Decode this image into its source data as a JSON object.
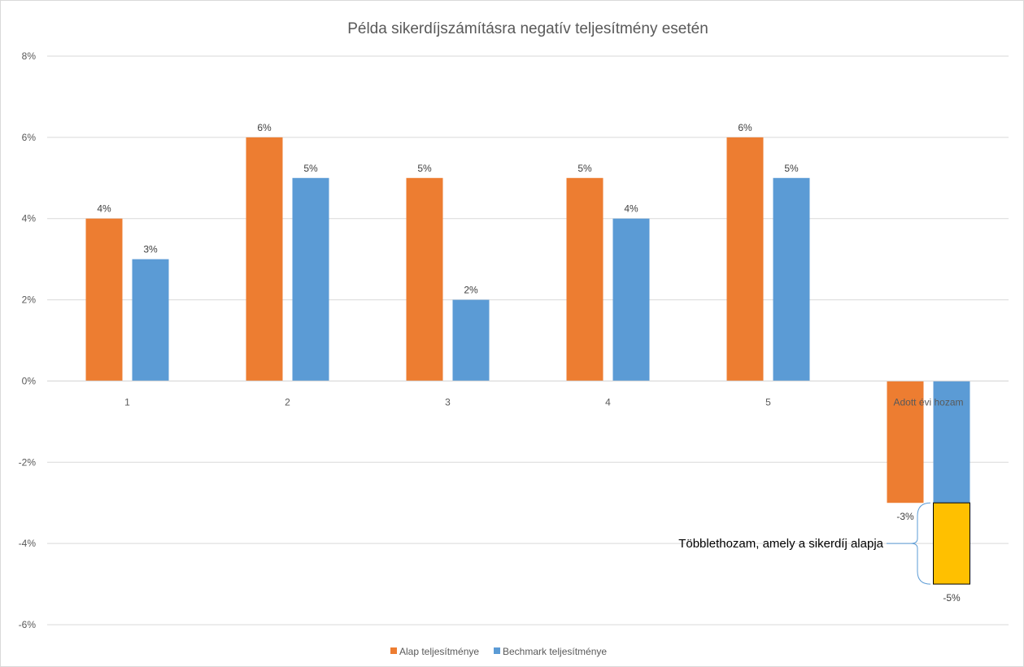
{
  "chart_data": {
    "type": "bar",
    "title": "Példa sikerdíjszámításra negatív teljesítmény esetén",
    "categories": [
      "1",
      "2",
      "3",
      "4",
      "5",
      "Adott évi hozam"
    ],
    "series": [
      {
        "name": "Alap teljesítménye",
        "color": "#ED7D31",
        "values": [
          0.04,
          0.06,
          0.05,
          0.05,
          0.06,
          -0.03
        ],
        "labels": [
          "4%",
          "6%",
          "5%",
          "5%",
          "6%",
          "-3%"
        ]
      },
      {
        "name": "Bechmark teljesítménye",
        "color": "#5B9BD5",
        "values": [
          0.03,
          0.05,
          0.02,
          0.04,
          0.05,
          -0.05
        ],
        "labels": [
          "3%",
          "5%",
          "2%",
          "4%",
          "5%",
          "-5%"
        ]
      }
    ],
    "ylim": [
      -0.06,
      0.08
    ],
    "yticks": [
      0.08,
      0.06,
      0.04,
      0.02,
      0,
      -0.02,
      -0.04,
      -0.06
    ],
    "ytick_labels": [
      "8%",
      "6%",
      "4%",
      "2%",
      "0%",
      "-2%",
      "-4%",
      "-6%"
    ],
    "grid": true,
    "legend_position": "bottom",
    "highlight": {
      "category_index": 5,
      "from": -0.03,
      "to": -0.05,
      "color": "#FFC000",
      "label": "Többlethozam, amely a sikerdíj alapja"
    }
  }
}
